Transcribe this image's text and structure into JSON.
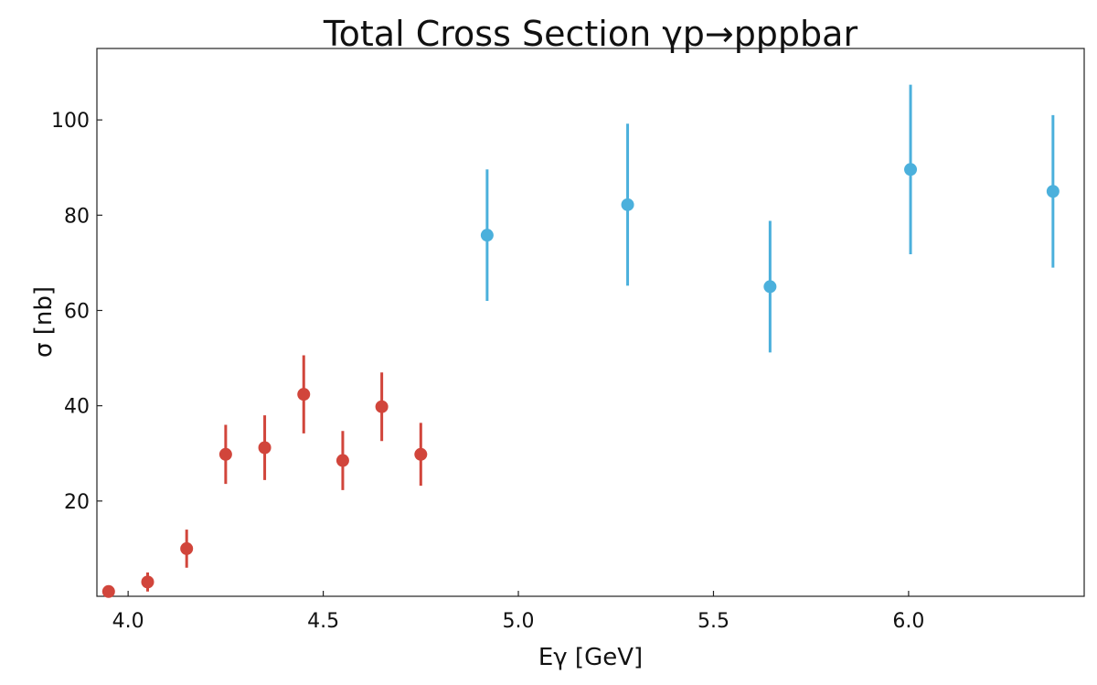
{
  "chart_data": {
    "type": "scatter",
    "title": "Total Cross Section γp→pppbar",
    "xlabel": "Eγ [GeV]",
    "ylabel": "σ [nb]",
    "xlim": [
      3.92,
      6.45
    ],
    "ylim": [
      0,
      115
    ],
    "x_ticks": [
      4.0,
      4.5,
      5.0,
      5.5,
      6.0
    ],
    "x_tick_labels": [
      "4.0",
      "4.5",
      "5.0",
      "5.5",
      "6.0"
    ],
    "y_ticks": [
      20,
      40,
      60,
      80,
      100
    ],
    "y_tick_labels": [
      "20",
      "40",
      "60",
      "80",
      "100"
    ],
    "grid": false,
    "series": [
      {
        "color": "#d1453b",
        "x": [
          3.95,
          4.05,
          4.15,
          4.25,
          4.35,
          4.45,
          4.55,
          4.65,
          4.75
        ],
        "y": [
          1.0,
          3.0,
          10.0,
          29.8,
          31.2,
          42.4,
          28.5,
          39.8,
          29.8
        ],
        "yerr": [
          0.5,
          2.0,
          4.0,
          6.2,
          6.8,
          8.2,
          6.2,
          7.2,
          6.6
        ]
      },
      {
        "color": "#4bb0dc",
        "x": [
          4.92,
          5.28,
          5.645,
          6.005,
          6.37
        ],
        "y": [
          75.8,
          82.2,
          65.0,
          89.6,
          85.0
        ],
        "yerr": [
          13.8,
          17.0,
          13.8,
          17.8,
          16.0
        ]
      }
    ]
  }
}
